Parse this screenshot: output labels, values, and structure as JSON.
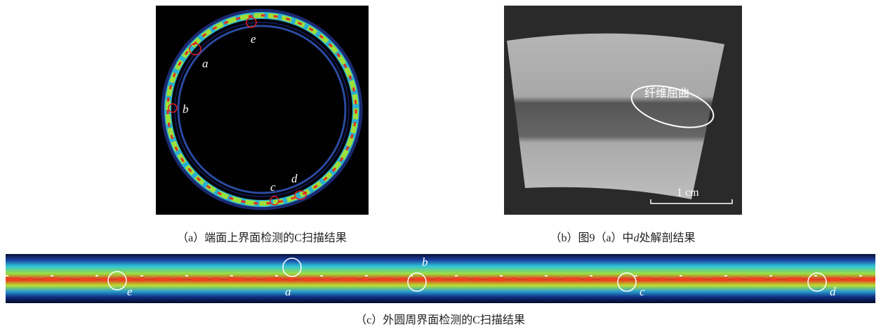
{
  "panel_a": {
    "labels": [
      "e",
      "a",
      "b",
      "c",
      "d"
    ],
    "caption": "（a）端面上界面检测的C扫描结果"
  },
  "panel_b": {
    "annotation": "纤维屈曲",
    "scale_bar": "1 cm",
    "caption_parts": [
      "（b）图9（a）中",
      "d",
      "处解剖结果"
    ]
  },
  "panel_c": {
    "labels": [
      "e",
      "a",
      "b",
      "c",
      "d"
    ],
    "caption": "（c）外圆周界面检测的C扫描结果"
  }
}
